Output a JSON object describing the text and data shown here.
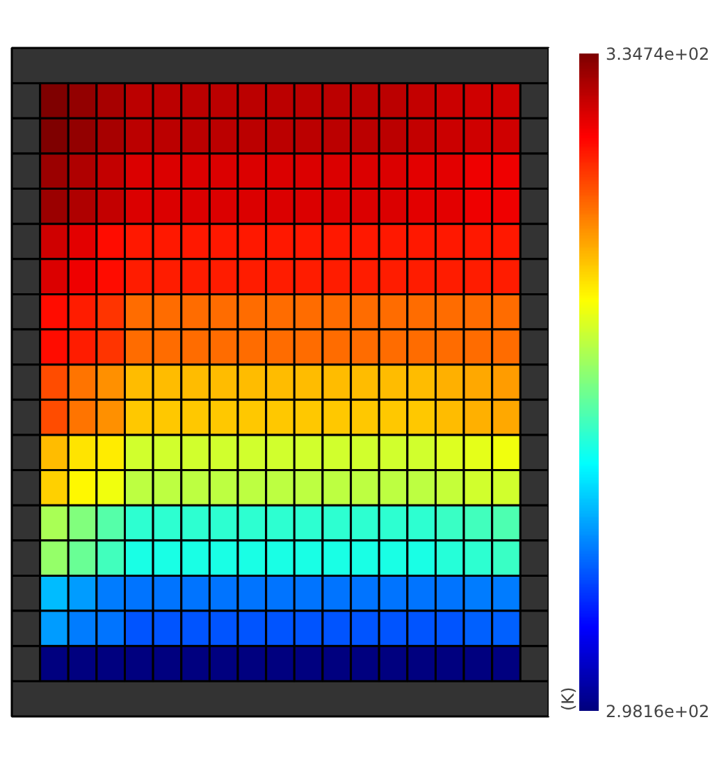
{
  "chart_data": {
    "type": "heatmap",
    "clabel": "(K)",
    "categories": [
      null,
      null,
      null,
      null,
      null,
      null,
      null,
      null,
      null,
      null,
      null,
      null,
      null,
      null,
      null,
      null,
      null,
      null,
      null
    ],
    "y_categories": [
      null,
      null,
      null,
      null,
      null,
      null,
      null,
      null,
      null,
      null,
      null,
      null,
      null,
      null,
      null,
      null,
      null
    ],
    "clim": [
      298.16,
      334.74
    ],
    "cticks": [
      {
        "value": 298.16,
        "label": "2.9816e+02"
      },
      {
        "value": 334.74,
        "label": "3.3474e+02"
      }
    ],
    "cells": [
      [
        null,
        334.7,
        334.0,
        333.3,
        332.5,
        332.5,
        332.5,
        332.5,
        332.5,
        332.5,
        332.5,
        332.5,
        332.5,
        332.5,
        332.2,
        332.0,
        331.8,
        331.8,
        null
      ],
      [
        null,
        334.7,
        334.0,
        333.3,
        332.5,
        332.5,
        332.5,
        332.5,
        332.5,
        332.5,
        332.5,
        332.5,
        332.5,
        332.5,
        332.2,
        332.0,
        331.8,
        331.8,
        null
      ],
      [
        null,
        333.6,
        332.9,
        332.2,
        331.4,
        331.4,
        331.4,
        331.4,
        331.4,
        331.4,
        331.4,
        331.4,
        331.4,
        331.4,
        331.1,
        331.1,
        330.7,
        330.7,
        null
      ],
      [
        null,
        333.6,
        332.9,
        332.2,
        331.4,
        331.4,
        331.4,
        331.4,
        331.4,
        331.4,
        331.4,
        331.4,
        331.4,
        331.4,
        331.1,
        331.1,
        330.7,
        330.7,
        null
      ],
      [
        null,
        331.8,
        331.1,
        329.6,
        329.3,
        329.3,
        329.3,
        329.3,
        329.3,
        329.3,
        329.3,
        329.3,
        329.3,
        329.3,
        329.3,
        329.3,
        329.3,
        329.3,
        null
      ],
      [
        null,
        331.4,
        330.7,
        329.6,
        329.1,
        329.1,
        329.1,
        329.1,
        329.1,
        329.1,
        329.1,
        329.1,
        329.1,
        329.1,
        329.1,
        329.1,
        329.1,
        329.1,
        null
      ],
      [
        null,
        329.6,
        329.1,
        328.2,
        326.3,
        326.3,
        326.3,
        326.3,
        326.3,
        326.3,
        326.3,
        326.3,
        326.3,
        326.3,
        326.3,
        326.3,
        326.3,
        326.3,
        null
      ],
      [
        null,
        329.6,
        329.1,
        328.2,
        326.3,
        326.3,
        326.3,
        326.3,
        326.3,
        326.3,
        326.3,
        326.3,
        326.3,
        326.3,
        326.3,
        326.3,
        326.3,
        326.3,
        null
      ],
      [
        null,
        327.4,
        326.0,
        324.9,
        323.4,
        323.4,
        323.4,
        323.4,
        323.4,
        323.4,
        323.4,
        323.4,
        323.4,
        323.4,
        323.4,
        323.8,
        324.1,
        324.5,
        null
      ],
      [
        null,
        327.4,
        326.0,
        324.9,
        323.0,
        323.0,
        323.0,
        323.0,
        323.0,
        323.0,
        323.0,
        323.0,
        323.0,
        323.0,
        323.0,
        323.4,
        323.8,
        324.1,
        null
      ],
      [
        null,
        323.4,
        321.9,
        321.6,
        319.4,
        319.4,
        319.4,
        319.4,
        319.4,
        319.4,
        319.4,
        319.4,
        319.4,
        319.4,
        319.4,
        319.8,
        320.1,
        320.5,
        null
      ],
      [
        null,
        322.7,
        321.2,
        320.5,
        318.6,
        318.6,
        318.6,
        318.6,
        318.6,
        318.6,
        318.6,
        318.6,
        318.6,
        318.6,
        318.6,
        319.0,
        319.4,
        319.4,
        null
      ],
      [
        null,
        317.9,
        316.5,
        315.0,
        313.5,
        313.5,
        313.5,
        313.5,
        313.5,
        313.5,
        313.5,
        313.5,
        313.5,
        313.5,
        313.5,
        313.9,
        314.3,
        314.6,
        null
      ],
      [
        null,
        317.2,
        315.7,
        314.3,
        312.8,
        312.8,
        312.8,
        312.8,
        312.8,
        312.8,
        312.8,
        312.8,
        312.8,
        312.8,
        312.8,
        313.2,
        313.5,
        313.9,
        null
      ],
      [
        null,
        309.5,
        308.4,
        307.3,
        306.9,
        306.9,
        306.9,
        306.9,
        306.9,
        306.9,
        306.9,
        306.9,
        306.9,
        306.9,
        306.9,
        306.9,
        307.3,
        307.3,
        null
      ],
      [
        null,
        308.4,
        307.3,
        306.9,
        305.8,
        305.8,
        305.8,
        305.8,
        305.8,
        305.8,
        305.8,
        305.8,
        305.8,
        305.8,
        305.8,
        305.8,
        306.2,
        306.2,
        null
      ],
      [
        null,
        298.2,
        298.2,
        298.2,
        298.2,
        298.2,
        298.2,
        298.2,
        298.2,
        298.2,
        298.2,
        298.2,
        298.2,
        298.2,
        298.2,
        298.2,
        298.2,
        298.2,
        null
      ]
    ]
  }
}
